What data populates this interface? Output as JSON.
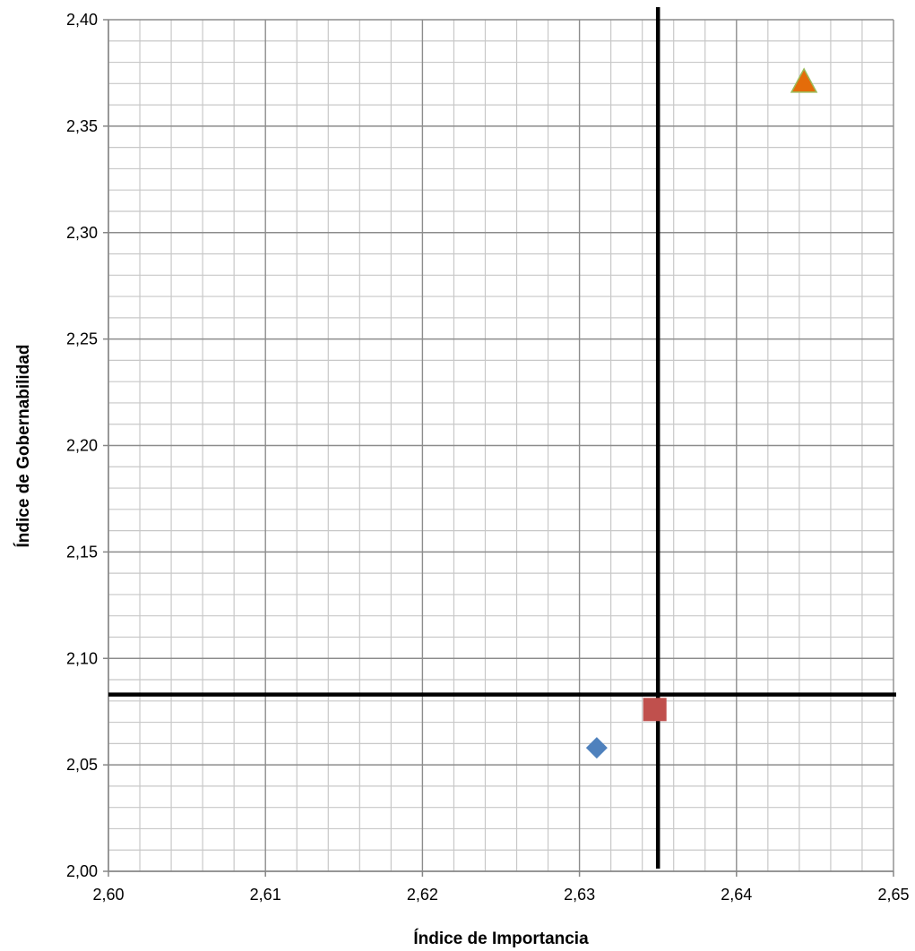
{
  "chart_data": {
    "type": "scatter",
    "title": "",
    "xlabel": "Índice de Importancia",
    "ylabel": "Índice de Gobernabilidad",
    "xlim": [
      2.6,
      2.65
    ],
    "ylim": [
      2.0,
      2.4
    ],
    "x_major_step": 0.01,
    "y_major_step": 0.05,
    "x_minor_divisions": 5,
    "y_minor_divisions": 5,
    "x_ticks": [
      "2,60",
      "2,61",
      "2,62",
      "2,63",
      "2,64",
      "2,65"
    ],
    "y_ticks": [
      "2,00",
      "2,05",
      "2,10",
      "2,15",
      "2,20",
      "2,25",
      "2,30",
      "2,35",
      "2,40"
    ],
    "grid": true,
    "legend": "none",
    "points": [
      {
        "x": 2.6311,
        "y": 2.058,
        "marker": "diamond",
        "color": "#4F81BD"
      },
      {
        "x": 2.6348,
        "y": 2.076,
        "marker": "square",
        "color": "#C0504D"
      },
      {
        "x": 2.6443,
        "y": 2.371,
        "marker": "triangle",
        "color": "#E46C0A",
        "edge_color": "#9BBB59"
      }
    ],
    "reference_lines": {
      "vertical_x": 2.635,
      "horizontal_y": 2.083,
      "color": "#000000"
    },
    "colors": {
      "grid_major": "#8c8c8c",
      "grid_minor": "#c8c8c8",
      "axis": "#868686"
    }
  }
}
